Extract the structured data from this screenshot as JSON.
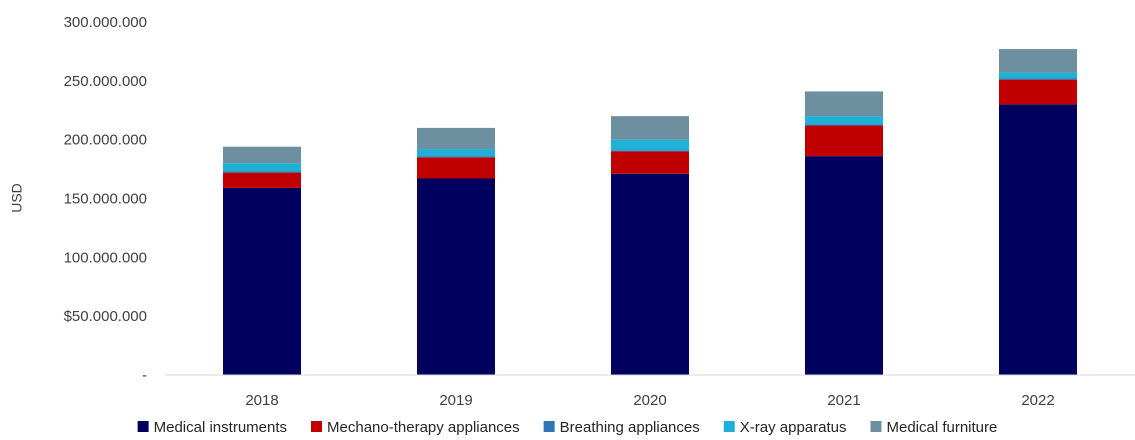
{
  "chart_data": {
    "type": "bar",
    "stacked": true,
    "ylabel": "USD",
    "xlabel": "",
    "ylim": [
      0,
      300000000
    ],
    "y_ticks": [
      {
        "value": 0,
        "label": "-"
      },
      {
        "value": 50000000,
        "label": "$50.000.000"
      },
      {
        "value": 100000000,
        "label": "100.000.000"
      },
      {
        "value": 150000000,
        "label": "150.000.000"
      },
      {
        "value": 200000000,
        "label": "200.000.000"
      },
      {
        "value": 250000000,
        "label": "250.000.000"
      },
      {
        "value": 300000000,
        "label": "300.000.000"
      }
    ],
    "categories": [
      "2018",
      "2019",
      "2020",
      "2021",
      "2022"
    ],
    "legend_position": "bottom",
    "grid": false,
    "series": [
      {
        "name": "Medical instruments",
        "color": "#00005f",
        "values": [
          159000000,
          167000000,
          171000000,
          186000000,
          230000000
        ]
      },
      {
        "name": "Mechano-therapy appliances",
        "color": "#c00000",
        "values": [
          13000000,
          18000000,
          19000000,
          26000000,
          21000000
        ]
      },
      {
        "name": "Breathing appliances",
        "color": "#2e75b6",
        "values": [
          1000000,
          1000000,
          1000000,
          1000000,
          1000000
        ]
      },
      {
        "name": "X-ray apparatus",
        "color": "#1fb0d6",
        "values": [
          7000000,
          6000000,
          9000000,
          7000000,
          5000000
        ]
      },
      {
        "name": "Medical furniture",
        "color": "#6e8fa0",
        "values": [
          14000000,
          18000000,
          20000000,
          21000000,
          20000000
        ]
      }
    ]
  }
}
